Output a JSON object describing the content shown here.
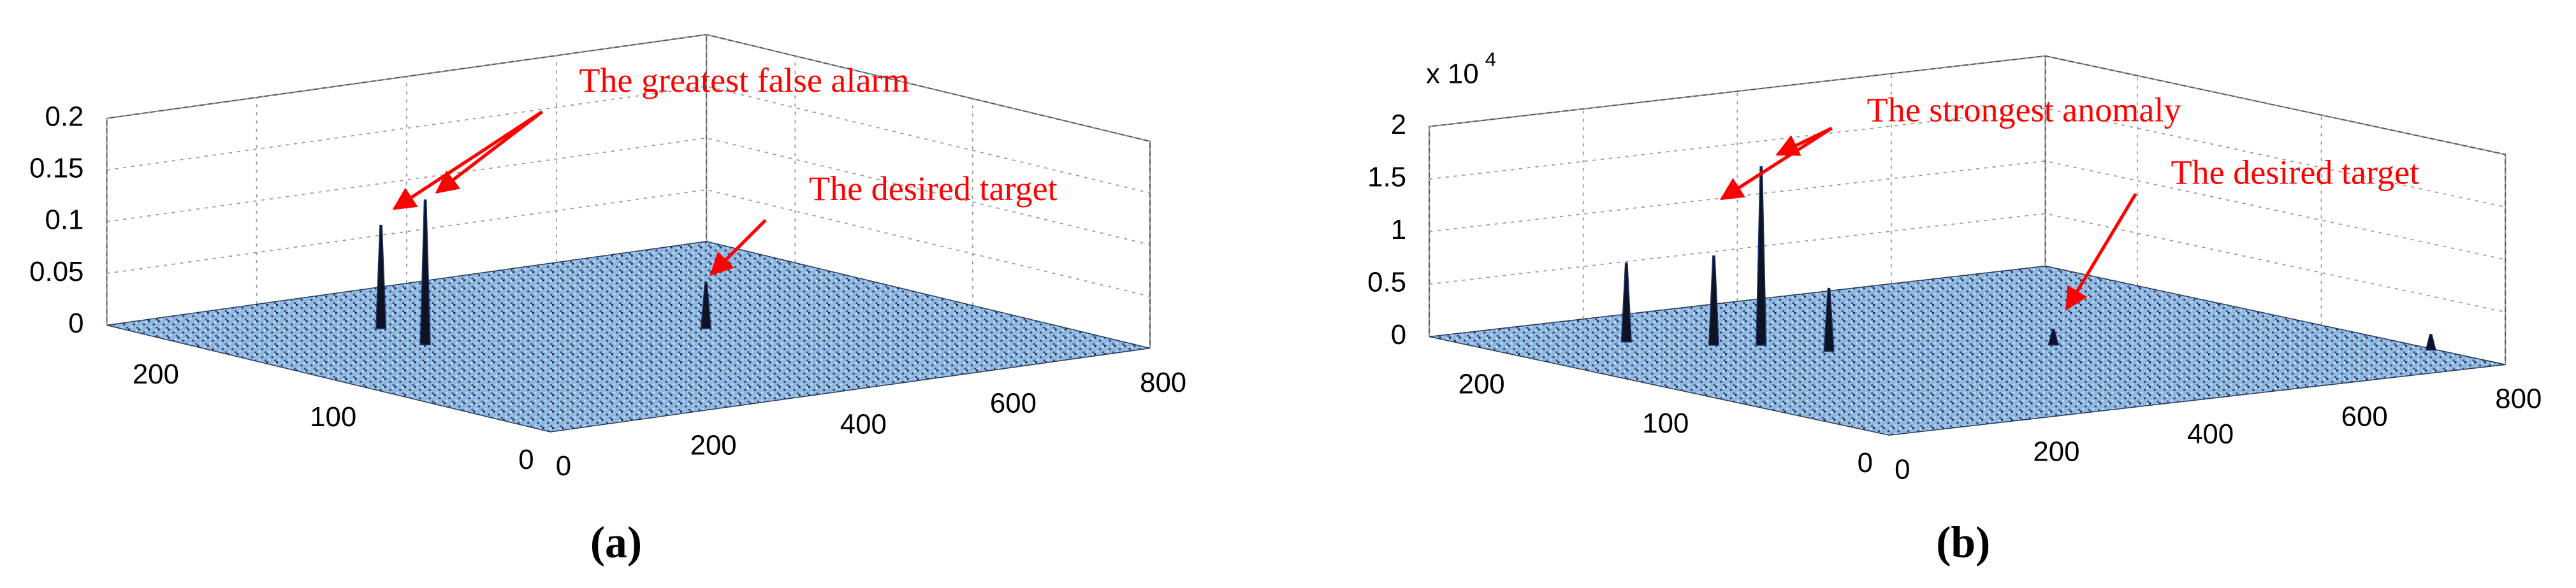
{
  "chart_data": [
    {
      "type": "surface3d",
      "caption": "(a)",
      "annotations": [
        "The greatest false alarm",
        "The desired target"
      ],
      "xlim": [
        0,
        800
      ],
      "ylim": [
        0,
        250
      ],
      "zlim": [
        0,
        0.2
      ],
      "xticks": [
        0,
        200,
        400,
        600,
        800
      ],
      "yticks": [
        0,
        100,
        200
      ],
      "zticks": [
        0,
        0.05,
        0.1,
        0.15,
        0.2
      ],
      "grid": true,
      "color": "#8fb9e3",
      "peaks": {
        "x": [
          219,
          200,
          494
        ],
        "y": [
          188,
          155,
          121
        ],
        "z": [
          0.1,
          0.14,
          0.045
        ]
      }
    },
    {
      "type": "surface3d",
      "caption": "(b)",
      "annotations": [
        "The strongest anomaly",
        "The desired target"
      ],
      "offset_text": {
        "base": "x 10",
        "exponent": "4"
      },
      "xlim": [
        0,
        800
      ],
      "ylim": [
        0,
        250
      ],
      "zlim": [
        0,
        2
      ],
      "xticks": [
        0,
        200,
        400,
        600,
        800
      ],
      "yticks": [
        0,
        100,
        200
      ],
      "zticks": [
        0,
        0.5,
        1,
        1.5,
        2
      ],
      "grid": true,
      "color": "#8fb9e3",
      "peaks": {
        "x": [
          247,
          207,
          146,
          280,
          495,
          794
        ],
        "y": [
          173,
          182,
          204,
          150,
          118,
          38
        ],
        "z": [
          1.7,
          0.85,
          0.75,
          0.6,
          0.15,
          0.15
        ]
      }
    }
  ]
}
